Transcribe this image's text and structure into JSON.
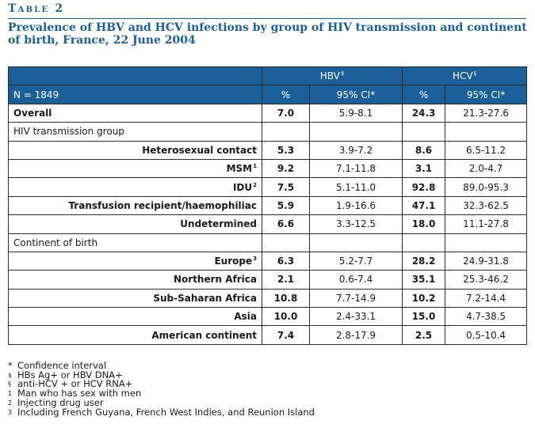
{
  "table_label": "Table 2",
  "caption": "Prevalence of HBV and HCV infections by group of HIV transmission and continent of birth, France, 22 June 2004",
  "header": {
    "hbv": "HBV",
    "hbv_mark": "$",
    "hcv": "HCV",
    "hcv_mark": "§",
    "n_label": "N = 1849",
    "pct": "%",
    "ci": "95% CI*"
  },
  "rows": [
    {
      "label": "Overall",
      "mark": "",
      "hbv_pct": "7.0",
      "hbv_ci": "5.9-8.1",
      "hcv_pct": "24.3",
      "hcv_ci": "21.3-27.6"
    },
    {
      "label": "HIV transmission group",
      "section": true
    },
    {
      "label": "Heterosexual contact",
      "mark": "",
      "hbv_pct": "5.3",
      "hbv_ci": "3.9-7.2",
      "hcv_pct": "8.6",
      "hcv_ci": "6.5-11.2"
    },
    {
      "label": "MSM",
      "mark": "1",
      "hbv_pct": "9.2",
      "hbv_ci": "7.1-11.8",
      "hcv_pct": "3.1",
      "hcv_ci": "2.0-4.7"
    },
    {
      "label": "IDU",
      "mark": "2",
      "hbv_pct": "7.5",
      "hbv_ci": "5.1-11.0",
      "hcv_pct": "92.8",
      "hcv_ci": "89.0-95.3"
    },
    {
      "label": "Transfusion recipient/haemophiliac",
      "mark": "",
      "hbv_pct": "5.9",
      "hbv_ci": "1.9-16.6",
      "hcv_pct": "47.1",
      "hcv_ci": "32.3-62.5"
    },
    {
      "label": "Undetermined",
      "mark": "",
      "hbv_pct": "6.6",
      "hbv_ci": "3.3-12.5",
      "hcv_pct": "18.0",
      "hcv_ci": "11.1-27.8"
    },
    {
      "label": "Continent of birth",
      "section": true
    },
    {
      "label": "Europe",
      "mark": "3",
      "hbv_pct": "6.3",
      "hbv_ci": "5.2-7.7",
      "hcv_pct": "28.2",
      "hcv_ci": "24.9-31.8"
    },
    {
      "label": "Northern Africa",
      "mark": "",
      "hbv_pct": "2.1",
      "hbv_ci": "0.6-7.4",
      "hcv_pct": "35.1",
      "hcv_ci": "25.3-46.2"
    },
    {
      "label": "Sub-Saharan Africa",
      "mark": "",
      "hbv_pct": "10.8",
      "hbv_ci": "7.7-14.9",
      "hcv_pct": "10.2",
      "hcv_ci": "7.2-14.4"
    },
    {
      "label": "Asia",
      "mark": "",
      "hbv_pct": "10.0",
      "hbv_ci": "2.4-33.1",
      "hcv_pct": "15.0",
      "hcv_ci": "4.7-38.5"
    },
    {
      "label": "American continent",
      "mark": "",
      "hbv_pct": "7.4",
      "hbv_ci": "2.8-17.9",
      "hcv_pct": "2.5",
      "hcv_ci": "0.5-10.4"
    }
  ],
  "footnotes": [
    {
      "mark": "*",
      "text": "Confidence interval"
    },
    {
      "mark": "$",
      "text": "HBs Ag+ or HBV DNA+"
    },
    {
      "mark": "§",
      "text": "anti-HCV + or HCV RNA+"
    },
    {
      "mark": "1",
      "text": "Man who has sex with men"
    },
    {
      "mark": "2",
      "text": "Injecting drug user"
    },
    {
      "mark": "3",
      "text": "Including French Guyana, French West Indies, and Reunion Island"
    }
  ],
  "colors": {
    "accent": "#1b5f98",
    "header_text": "#ffffff"
  }
}
